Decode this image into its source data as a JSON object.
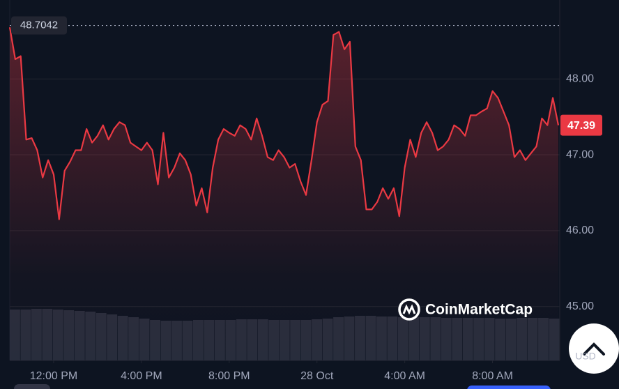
{
  "chart_data": {
    "type": "line",
    "series": [
      {
        "color": "#ea3943",
        "values": [
          48.68,
          48.26,
          48.3,
          47.2,
          47.22,
          47.06,
          46.7,
          46.93,
          46.74,
          46.15,
          46.79,
          46.91,
          47.06,
          47.06,
          47.34,
          47.16,
          47.25,
          47.39,
          47.2,
          47.34,
          47.43,
          47.39,
          47.16,
          47.11,
          47.06,
          47.16,
          47.06,
          46.61,
          47.29,
          46.7,
          46.83,
          47.02,
          46.93,
          46.74,
          46.33,
          46.56,
          46.24,
          46.83,
          47.2,
          47.34,
          47.29,
          47.25,
          47.39,
          47.34,
          47.2,
          47.48,
          47.25,
          46.97,
          46.93,
          47.06,
          46.97,
          46.83,
          46.88,
          46.65,
          46.47,
          46.93,
          47.43,
          47.66,
          47.71,
          48.58,
          48.62,
          48.39,
          48.49,
          47.11,
          46.93,
          46.28,
          46.28,
          46.38,
          46.56,
          46.42,
          46.56,
          46.19,
          46.83,
          47.2,
          46.97,
          47.29,
          47.43,
          47.29,
          47.06,
          47.11,
          47.2,
          47.39,
          47.34,
          47.25,
          47.52,
          47.52,
          47.57,
          47.61,
          47.84,
          47.75,
          47.57,
          47.39,
          46.97,
          47.06,
          46.93,
          47.02,
          47.11,
          47.48,
          47.39,
          47.75,
          47.39
        ]
      }
    ],
    "volume": [
      73,
      73,
      74,
      74,
      73,
      72,
      71,
      70,
      68,
      66,
      64,
      62,
      60,
      58,
      57,
      57,
      57,
      58,
      58,
      58,
      58,
      59,
      59,
      59,
      58,
      58,
      58,
      58,
      59,
      60,
      62,
      63,
      64,
      64,
      63,
      63,
      62,
      62,
      62,
      62,
      61,
      61,
      61,
      61,
      61,
      60,
      60,
      61,
      61,
      61,
      60
    ],
    "xlim": [
      0,
      100
    ],
    "xticks": [
      {
        "value": 8,
        "label": "12:00 PM"
      },
      {
        "value": 24,
        "label": "4:00 PM"
      },
      {
        "value": 40,
        "label": "8:00 PM"
      },
      {
        "value": 56,
        "label": "28 Oct"
      },
      {
        "value": 72,
        "label": "4:00 AM"
      },
      {
        "value": 88,
        "label": "8:00 AM"
      }
    ],
    "ylim": [
      44.29,
      49.04
    ],
    "yticks": [
      {
        "value": 45,
        "label": "45.00"
      },
      {
        "value": 46,
        "label": "46.00"
      },
      {
        "value": 47,
        "label": "47.00"
      },
      {
        "value": 48,
        "label": "48.00"
      }
    ],
    "high": 48.7042,
    "last_price": 47.39,
    "grid": true,
    "watermark": "CoinMarketCap",
    "currency": "USD"
  }
}
